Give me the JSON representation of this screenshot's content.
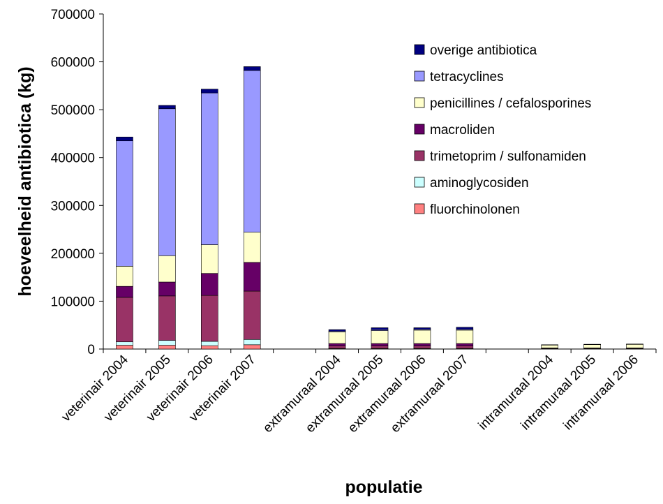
{
  "chart_data": {
    "type": "bar",
    "stacked": true,
    "title": "",
    "xlabel": "populatie",
    "ylabel": "hoeveelheid antibiotica (kg)",
    "ylim": [
      0,
      700000
    ],
    "yticks": [
      "0",
      "100000",
      "200000",
      "300000",
      "400000",
      "500000",
      "600000",
      "700000"
    ],
    "grid": false,
    "legend_position": "top-right",
    "slots": [
      "veterinair 2004",
      "veterinair 2005",
      "veterinair 2006",
      "veterinair 2007",
      "",
      "extramuraal 2004",
      "extramuraal 2005",
      "extramuraal 2006",
      "extramuraal 2007",
      "",
      "intramuraal 2004",
      "intramuraal 2005",
      "intramuraal 2006"
    ],
    "categories": [
      "veterinair 2004",
      "veterinair 2005",
      "veterinair 2006",
      "veterinair 2007",
      "extramuraal 2004",
      "extramuraal 2005",
      "extramuraal 2006",
      "extramuraal 2007",
      "intramuraal 2004",
      "intramuraal 2005",
      "intramuraal 2006"
    ],
    "series": [
      {
        "name": "fluorchinolonen",
        "color": "#FF8080",
        "values": [
          8000,
          8000,
          7000,
          9000,
          1000,
          1000,
          1000,
          1000,
          500,
          500,
          500
        ]
      },
      {
        "name": "aminoglycosiden",
        "color": "#CCFFFF",
        "values": [
          7000,
          10000,
          9000,
          11000,
          500,
          500,
          500,
          500,
          300,
          300,
          300
        ]
      },
      {
        "name": "trimetoprim / sulfonamiden",
        "color": "#993366",
        "values": [
          93000,
          93000,
          96000,
          101000,
          5000,
          5000,
          5000,
          5000,
          1000,
          1000,
          1000
        ]
      },
      {
        "name": "macroliden",
        "color": "#660066",
        "values": [
          23000,
          29000,
          46000,
          60000,
          5000,
          5000,
          5000,
          5000,
          500,
          500,
          500
        ]
      },
      {
        "name": "penicillines / cefalosporines",
        "color": "#FFFFCC",
        "values": [
          42000,
          55000,
          60000,
          63000,
          24000,
          27000,
          28000,
          28000,
          6000,
          7000,
          7500
        ]
      },
      {
        "name": "tetracyclines",
        "color": "#9999FF",
        "values": [
          262000,
          307000,
          317000,
          338000,
          2000,
          2000,
          2000,
          2000,
          300,
          300,
          300
        ]
      },
      {
        "name": "overige antibiotica",
        "color": "#000080",
        "values": [
          8000,
          7000,
          8000,
          8000,
          3000,
          4000,
          3000,
          4000,
          400,
          400,
          400
        ]
      }
    ]
  }
}
